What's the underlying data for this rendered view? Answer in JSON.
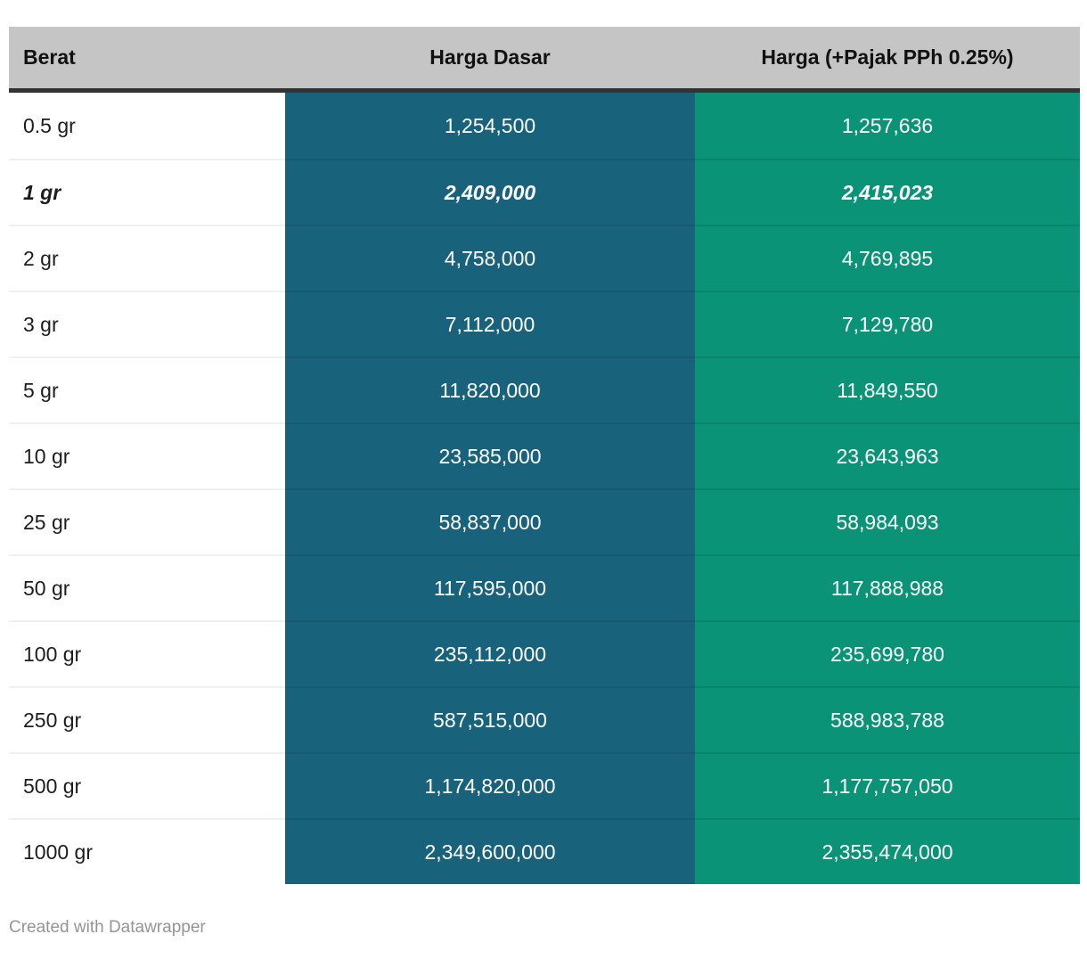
{
  "colors": {
    "header_bg": "#c5c5c5",
    "header_border": "#333333",
    "col_dasar_bg": "#19627c",
    "col_pajak_bg": "#0a9377",
    "cell_text_light": "#ffffff",
    "label_text": "#1d1d1d",
    "credit_text": "#949494"
  },
  "table": {
    "columns": [
      {
        "label": "Berat"
      },
      {
        "label": "Harga Dasar"
      },
      {
        "label": "Harga (+Pajak PPh 0.25%)"
      }
    ],
    "rows": [
      {
        "berat": "0.5 gr",
        "dasar": "1,254,500",
        "pajak": "1,257,636"
      },
      {
        "berat": "1 gr",
        "dasar": "2,409,000",
        "pajak": "2,415,023"
      },
      {
        "berat": "2 gr",
        "dasar": "4,758,000",
        "pajak": "4,769,895"
      },
      {
        "berat": "3 gr",
        "dasar": "7,112,000",
        "pajak": "7,129,780"
      },
      {
        "berat": "5 gr",
        "dasar": "11,820,000",
        "pajak": "11,849,550"
      },
      {
        "berat": "10 gr",
        "dasar": "23,585,000",
        "pajak": "23,643,963"
      },
      {
        "berat": "25 gr",
        "dasar": "58,837,000",
        "pajak": "58,984,093"
      },
      {
        "berat": "50 gr",
        "dasar": "117,595,000",
        "pajak": "117,888,988"
      },
      {
        "berat": "100 gr",
        "dasar": "235,112,000",
        "pajak": "235,699,780"
      },
      {
        "berat": "250 gr",
        "dasar": "587,515,000",
        "pajak": "588,983,788"
      },
      {
        "berat": "500 gr",
        "dasar": "1,174,820,000",
        "pajak": "1,177,757,050"
      },
      {
        "berat": "1000 gr",
        "dasar": "2,349,600,000",
        "pajak": "2,355,474,000"
      }
    ]
  },
  "footer": {
    "credit": "Created with Datawrapper"
  },
  "chart_data": {
    "type": "table",
    "title": "",
    "columns": [
      "Berat",
      "Harga Dasar",
      "Harga (+Pajak PPh 0.25%)"
    ],
    "emphasized_row": "1 gr",
    "rows": [
      {
        "berat_gr": 0.5,
        "harga_dasar": 1254500,
        "harga_pajak": 1257636
      },
      {
        "berat_gr": 1,
        "harga_dasar": 2409000,
        "harga_pajak": 2415023
      },
      {
        "berat_gr": 2,
        "harga_dasar": 4758000,
        "harga_pajak": 4769895
      },
      {
        "berat_gr": 3,
        "harga_dasar": 7112000,
        "harga_pajak": 7129780
      },
      {
        "berat_gr": 5,
        "harga_dasar": 11820000,
        "harga_pajak": 11849550
      },
      {
        "berat_gr": 10,
        "harga_dasar": 23585000,
        "harga_pajak": 23643963
      },
      {
        "berat_gr": 25,
        "harga_dasar": 58837000,
        "harga_pajak": 58984093
      },
      {
        "berat_gr": 50,
        "harga_dasar": 117595000,
        "harga_pajak": 117888988
      },
      {
        "berat_gr": 100,
        "harga_dasar": 235112000,
        "harga_pajak": 235699780
      },
      {
        "berat_gr": 250,
        "harga_dasar": 587515000,
        "harga_pajak": 588983788
      },
      {
        "berat_gr": 500,
        "harga_dasar": 1174820000,
        "harga_pajak": 1177757050
      },
      {
        "berat_gr": 1000,
        "harga_dasar": 2349600000,
        "harga_pajak": 2355474000
      }
    ]
  }
}
